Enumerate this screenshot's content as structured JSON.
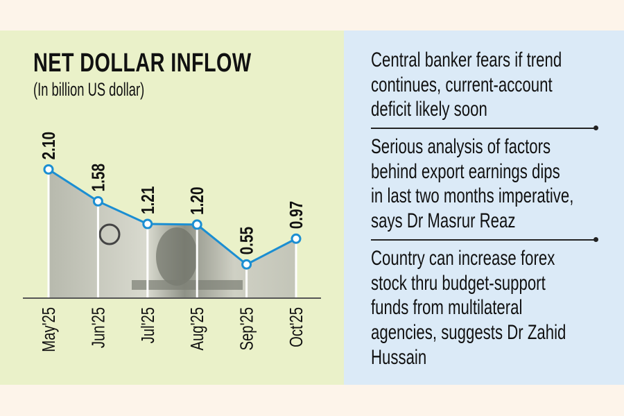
{
  "chart_data": {
    "type": "line",
    "title": "NET DOLLAR INFLOW",
    "subtitle": "(In billion US dollar)",
    "categories": [
      "May'25",
      "Jun'25",
      "Jul'25",
      "Aug'25",
      "Sep'25",
      "Oct'25"
    ],
    "values": [
      2.1,
      1.58,
      1.21,
      1.2,
      0.55,
      0.97
    ],
    "value_labels": [
      "2.10",
      "1.58",
      "1.21",
      "1.20",
      "0.55",
      "0.97"
    ],
    "ylim": [
      0,
      2.4
    ],
    "grid": false,
    "legend": "none",
    "line_color": "#1b8ed2",
    "background_image": "one-dollar-bill"
  },
  "notes": [
    {
      "lines": [
        "Central banker fears if trend",
        "continues, current-account",
        "deficit likely soon"
      ]
    },
    {
      "lines": [
        "Serious analysis of factors",
        "behind export earnings dips",
        "in last two months imperative,",
        "says Dr Masrur Reaz"
      ]
    },
    {
      "lines": [
        "Country can increase forex",
        "stock thru budget-support",
        "funds from  multilateral",
        "agencies, suggests Dr Zahid",
        "Hussain"
      ]
    }
  ],
  "colors": {
    "left_panel": "#eaf1c9",
    "right_panel": "#dbeaf7",
    "page": "#fdf4ea"
  }
}
